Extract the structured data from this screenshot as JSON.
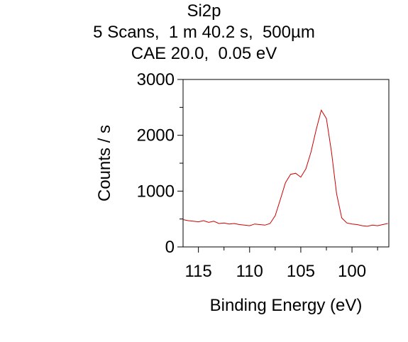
{
  "chart_data": {
    "type": "line",
    "title": "Si2p",
    "subtitle_lines": [
      "5 Scans,  1 m 40.2 s,  500µm",
      "CAE 20.0,  0.05 eV"
    ],
    "xlabel": "Binding Energy (eV)",
    "ylabel": "Counts / s",
    "x_reversed": true,
    "xlim": [
      116.5,
      96.4
    ],
    "ylim": [
      0,
      3000
    ],
    "x_ticks": [
      115,
      110,
      105,
      100
    ],
    "y_ticks": [
      0,
      1000,
      2000,
      3000
    ],
    "grid": false,
    "line_color": "#cc0000",
    "series": [
      {
        "x": [
          116.5,
          116.0,
          115.5,
          115.0,
          114.5,
          114.0,
          113.5,
          113.0,
          112.5,
          112.0,
          111.5,
          111.0,
          110.5,
          110.0,
          109.5,
          109.0,
          108.5,
          108.0,
          107.5,
          107.0,
          106.5,
          106.0,
          105.5,
          105.0,
          104.5,
          104.0,
          103.5,
          103.0,
          102.5,
          102.0,
          101.5,
          101.0,
          100.5,
          100.0,
          99.5,
          99.0,
          98.5,
          98.0,
          97.5,
          97.0,
          96.5
        ],
        "y": [
          490,
          470,
          460,
          450,
          470,
          440,
          460,
          420,
          430,
          410,
          420,
          400,
          390,
          380,
          410,
          400,
          390,
          420,
          560,
          850,
          1150,
          1300,
          1320,
          1250,
          1400,
          1700,
          2100,
          2450,
          2300,
          1700,
          950,
          520,
          430,
          410,
          400,
          380,
          370,
          390,
          380,
          400,
          420
        ]
      }
    ]
  }
}
